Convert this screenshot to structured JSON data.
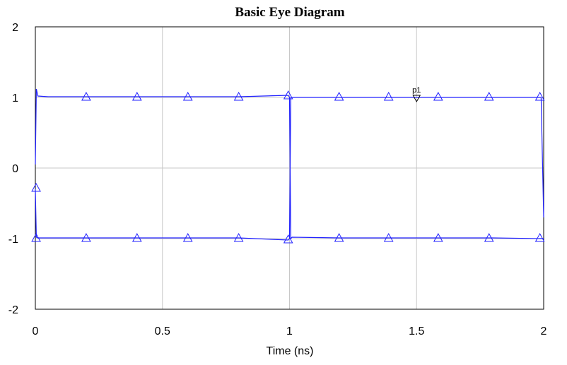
{
  "chart_data": {
    "type": "line",
    "title": "Basic Eye Diagram",
    "xlabel": "Time (ns)",
    "ylabel": "",
    "xlim": [
      0,
      2
    ],
    "ylim": [
      -2,
      2
    ],
    "x_ticks": [
      "0",
      "0.5",
      "1",
      "1.5",
      "2"
    ],
    "y_ticks": [
      "2",
      "1",
      "0",
      "-1",
      "-2"
    ],
    "grid": true,
    "line_color": "#2020ff",
    "series": [
      {
        "x": [
          0,
          0.004,
          0.01,
          0.05,
          0.2,
          0.4,
          0.6,
          0.8,
          0.995,
          1.0,
          1.005,
          1.01,
          1.2,
          1.4,
          1.6,
          1.8,
          2.0
        ],
        "y": [
          0.05,
          1.12,
          1.02,
          1.01,
          1.01,
          1.01,
          1.01,
          1.01,
          1.03,
          1.0,
          -1.0,
          -0.98,
          -0.99,
          -0.99,
          -0.99,
          -0.99,
          -1.0
        ]
      },
      {
        "x": [
          0,
          0.004,
          0.01,
          0.05,
          0.2,
          0.4,
          0.6,
          0.8,
          0.995,
          1.0,
          1.005,
          1.01,
          1.2,
          1.4,
          1.6,
          1.8,
          1.99,
          2.0
        ],
        "y": [
          -0.3,
          -0.98,
          -0.99,
          -0.99,
          -0.99,
          -0.99,
          -0.99,
          -0.99,
          -1.02,
          -1.0,
          1.0,
          1.0,
          1.0,
          1.0,
          1.0,
          1.0,
          1.0,
          -0.7
        ]
      }
    ],
    "markers": [
      {
        "x": 0.003,
        "y": -0.28
      },
      {
        "x": 0.2,
        "y": 1.01
      },
      {
        "x": 0.4,
        "y": 1.01
      },
      {
        "x": 0.6,
        "y": 1.01
      },
      {
        "x": 0.8,
        "y": 1.01
      },
      {
        "x": 0.995,
        "y": 1.03
      },
      {
        "x": 1.195,
        "y": 1.01
      },
      {
        "x": 1.39,
        "y": 1.01
      },
      {
        "x": 1.585,
        "y": 1.01
      },
      {
        "x": 1.785,
        "y": 1.01
      },
      {
        "x": 1.985,
        "y": 1.01
      },
      {
        "x": 0.003,
        "y": -0.99
      },
      {
        "x": 0.2,
        "y": -0.99
      },
      {
        "x": 0.4,
        "y": -0.99
      },
      {
        "x": 0.6,
        "y": -0.99
      },
      {
        "x": 0.8,
        "y": -0.99
      },
      {
        "x": 0.995,
        "y": -1.01
      },
      {
        "x": 1.195,
        "y": -0.99
      },
      {
        "x": 1.39,
        "y": -0.99
      },
      {
        "x": 1.585,
        "y": -0.99
      },
      {
        "x": 1.785,
        "y": -0.99
      },
      {
        "x": 1.985,
        "y": -0.99
      }
    ],
    "probe": {
      "label": "p1",
      "x": 1.5,
      "y": 1.0
    }
  }
}
